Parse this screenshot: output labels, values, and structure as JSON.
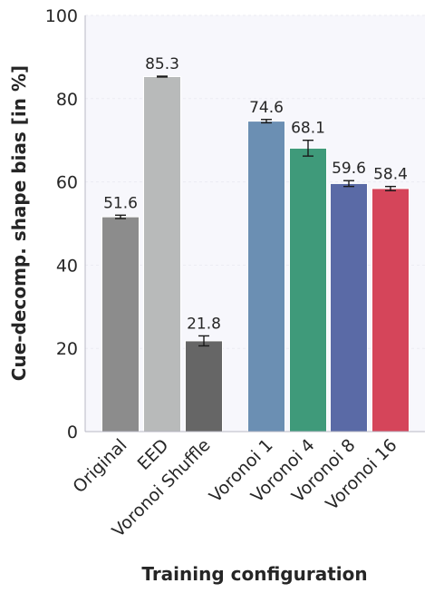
{
  "chart_data": {
    "type": "bar",
    "title": "",
    "xlabel": "Training configuration",
    "ylabel": "Cue-decomp. shape bias [in %]",
    "ylim": [
      0,
      100
    ],
    "yticks": [
      0,
      20,
      40,
      60,
      80,
      100
    ],
    "grid": true,
    "legend": "none",
    "categories": [
      "Original",
      "EED",
      "Voronoi Shuffle",
      "Voronoi 1",
      "Voronoi 4",
      "Voronoi 8",
      "Voronoi 16"
    ],
    "values": [
      51.6,
      85.3,
      21.8,
      74.6,
      68.1,
      59.6,
      58.4
    ],
    "value_labels": [
      "51.6",
      "85.3",
      "21.8",
      "74.6",
      "68.1",
      "59.6",
      "58.4"
    ],
    "errors": [
      0.4,
      0.1,
      1.2,
      0.4,
      1.9,
      0.7,
      0.5
    ],
    "colors": [
      "#8c8c8c",
      "#b8baba",
      "#666666",
      "#6b8fb3",
      "#3f9a7a",
      "#5a6aa6",
      "#d5455a"
    ],
    "groups": [
      [
        0,
        1,
        2
      ],
      [
        3,
        4,
        5,
        6
      ]
    ]
  }
}
